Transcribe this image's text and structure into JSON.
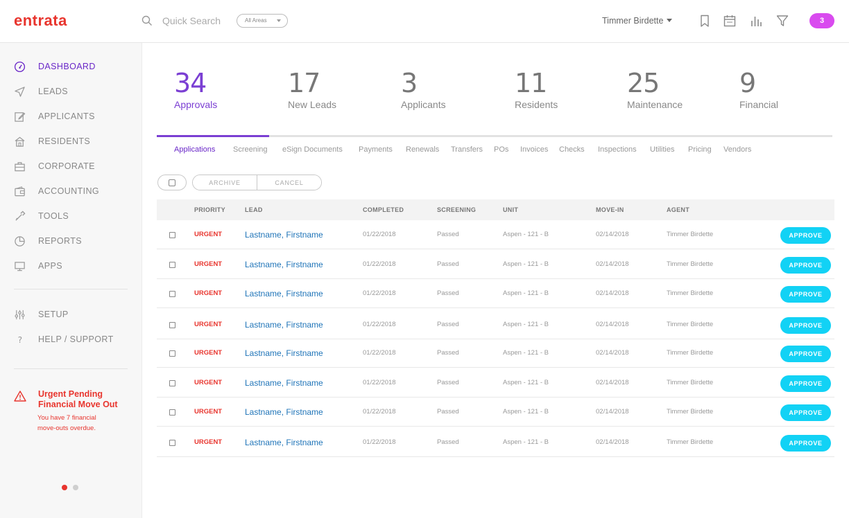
{
  "header": {
    "logo": "entrata",
    "search": {
      "placeholder": "Quick Search",
      "area_filter": "All Areas"
    },
    "user_name": "Timmer Birdette",
    "icons": [
      "bookmark-icon",
      "calendar-icon",
      "bar-chart-icon",
      "filter-icon"
    ],
    "notification_count": "3"
  },
  "sidebar": {
    "nav": [
      {
        "label": "DASHBOARD",
        "icon": "dashboard-gauge-icon",
        "active": true
      },
      {
        "label": "LEADS",
        "icon": "send-icon"
      },
      {
        "label": "APPLICANTS",
        "icon": "edit-icon"
      },
      {
        "label": "RESIDENTS",
        "icon": "home-icon"
      },
      {
        "label": "CORPORATE",
        "icon": "briefcase-icon"
      },
      {
        "label": "ACCOUNTING",
        "icon": "wallet-icon"
      },
      {
        "label": "TOOLS",
        "icon": "tools-icon"
      },
      {
        "label": "REPORTS",
        "icon": "pie-chart-icon"
      },
      {
        "label": "APPS",
        "icon": "monitor-icon"
      }
    ],
    "secondary": [
      {
        "label": "SETUP",
        "icon": "sliders-icon"
      },
      {
        "label": "HELP / SUPPORT",
        "icon": "question-icon"
      }
    ],
    "alert": {
      "title": "Urgent Pending Financial Move Out",
      "message": "You have 7 financial move-outs overdue."
    },
    "pager": {
      "count": 2,
      "active": 0
    },
    "colors": {
      "active": "#6a28c8",
      "alert": "#e8352e"
    }
  },
  "stats": [
    {
      "value": "34",
      "label": "Approvals",
      "active": true
    },
    {
      "value": "17",
      "label": "New Leads"
    },
    {
      "value": "3",
      "label": "Applicants"
    },
    {
      "value": "11",
      "label": "Residents"
    },
    {
      "value": "25",
      "label": "Maintenance"
    },
    {
      "value": "9",
      "label": "Financial"
    }
  ],
  "tabs": [
    "Applications",
    "Screening",
    "eSign Documents",
    "Payments",
    "Renewals",
    "Transfers",
    "POs",
    "Invoices",
    "Checks",
    "Inspections",
    "Utilities",
    "Pricing",
    "Vendors"
  ],
  "actions": {
    "archive": "ARCHIVE",
    "cancel": "CANCEL"
  },
  "table": {
    "columns": [
      "PRIORITY",
      "LEAD",
      "COMPLETED",
      "SCREENING",
      "UNIT",
      "MOVE-IN",
      "AGENT"
    ],
    "approve_label": "APPROVE",
    "rows": [
      {
        "priority": "URGENT",
        "lead": "Lastname, Firstname",
        "completed": "01/22/2018",
        "screening": "Passed",
        "unit": "Aspen - 121 - B",
        "move_in": "02/14/2018",
        "agent": "Timmer Birdette"
      },
      {
        "priority": "URGENT",
        "lead": "Lastname, Firstname",
        "completed": "01/22/2018",
        "screening": "Passed",
        "unit": "Aspen - 121 - B",
        "move_in": "02/14/2018",
        "agent": "Timmer Birdette"
      },
      {
        "priority": "URGENT",
        "lead": "Lastname, Firstname",
        "completed": "01/22/2018",
        "screening": "Passed",
        "unit": "Aspen - 121 - B",
        "move_in": "02/14/2018",
        "agent": "Timmer Birdette"
      },
      {
        "priority": "URGENT",
        "lead": "Lastname, Firstname",
        "completed": "01/22/2018",
        "screening": "Passed",
        "unit": "Aspen - 121 - B",
        "move_in": "02/14/2018",
        "agent": "Timmer Birdette"
      },
      {
        "priority": "URGENT",
        "lead": "Lastname, Firstname",
        "completed": "01/22/2018",
        "screening": "Passed",
        "unit": "Aspen - 121 - B",
        "move_in": "02/14/2018",
        "agent": "Timmer Birdette"
      },
      {
        "priority": "URGENT",
        "lead": "Lastname, Firstname",
        "completed": "01/22/2018",
        "screening": "Passed",
        "unit": "Aspen - 121 - B",
        "move_in": "02/14/2018",
        "agent": "Timmer Birdette"
      },
      {
        "priority": "URGENT",
        "lead": "Lastname, Firstname",
        "completed": "01/22/2018",
        "screening": "Passed",
        "unit": "Aspen - 121 - B",
        "move_in": "02/14/2018",
        "agent": "Timmer Birdette"
      },
      {
        "priority": "URGENT",
        "lead": "Lastname, Firstname",
        "completed": "01/22/2018",
        "screening": "Passed",
        "unit": "Aspen - 121 - B",
        "move_in": "02/14/2018",
        "agent": "Timmer Birdette"
      }
    ]
  },
  "theme": {
    "accent": "#7b3fd3",
    "approve": "#12d2f5",
    "badge": "#d94bef",
    "lead_link": "#1f74b8"
  }
}
